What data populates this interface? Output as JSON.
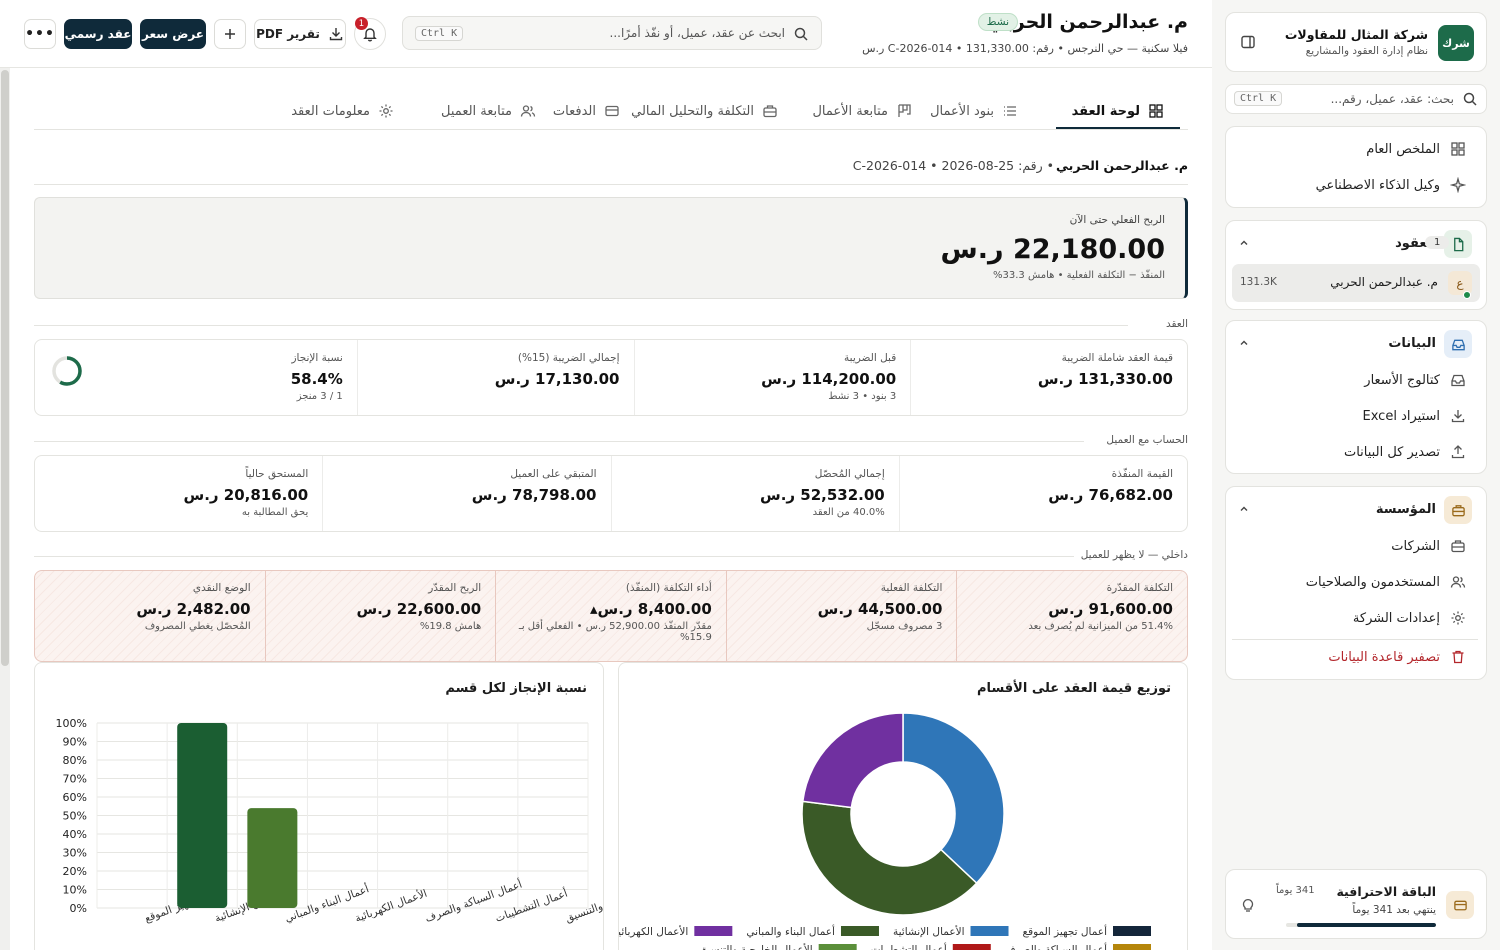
{
  "company": {
    "name": "شركة المثال للمقاولات",
    "subtitle": "نظام إدارة العقود والمشاريع",
    "logo_text": "شرك"
  },
  "sidebar_search": {
    "placeholder": "بحث: عقد، عميل، رقم...",
    "shortcut": "Ctrl K"
  },
  "nav_main": [
    {
      "label": "الملخص العام",
      "icon": "dashboard-icon"
    },
    {
      "label": "وكيل الذكاء الاصطناعي",
      "icon": "sparkle-icon"
    }
  ],
  "contracts": {
    "label": "العقود",
    "count": "1",
    "item_initial": "ع",
    "item_name": "م. عبدالرحمن الحربي",
    "item_value": "131.3K"
  },
  "data_group": {
    "label": "البيانات",
    "items": [
      {
        "label": "كتالوج الأسعار",
        "icon": "inbox-icon"
      },
      {
        "label": "استيراد Excel",
        "icon": "download-icon"
      },
      {
        "label": "تصدير كل البيانات",
        "icon": "upload-icon"
      }
    ]
  },
  "org_group": {
    "label": "المؤسسة",
    "items": [
      {
        "label": "الشركات",
        "icon": "briefcase-icon"
      },
      {
        "label": "المستخدمون والصلاحيات",
        "icon": "users-icon"
      },
      {
        "label": "إعدادات الشركة",
        "icon": "gear-icon"
      }
    ],
    "danger": "تصفير قاعدة البيانات"
  },
  "plan": {
    "name": "الباقة الاحترافية",
    "expires": "ينتهي بعد 341 يوماً",
    "days": "341 يوماً",
    "progress": 0.93
  },
  "header": {
    "title": "م. عبدالرحمن الحربي",
    "status": "نشط",
    "subtitle": "فيلا سكنية — حي النرجس • رقم: C-2026-014 • 131,330.00 ر.س",
    "search_placeholder": "ابحث عن عقد، عميل، أو نفّذ أمرًا...",
    "search_shortcut": "Ctrl K",
    "notif_count": "1",
    "btn_pdf": "تقرير PDF",
    "btn_quote": "عرض سعر",
    "btn_contract": "عقد رسمي"
  },
  "tabs": [
    {
      "label": "لوحة العقد",
      "icon": "dashboard-icon",
      "active": true
    },
    {
      "label": "بنود الأعمال",
      "icon": "list-icon"
    },
    {
      "label": "متابعة الأعمال",
      "icon": "kanban-icon"
    },
    {
      "label": "التكلفة والتحليل المالي",
      "icon": "briefcase-icon"
    },
    {
      "label": "الدفعات",
      "icon": "card-icon"
    },
    {
      "label": "متابعة العميل",
      "icon": "users-icon"
    },
    {
      "label": "معلومات العقد",
      "icon": "gear-icon"
    }
  ],
  "contract_line": {
    "name": "م. عبدالرحمن الحربي",
    "rest": " • رقم: C-2026-014 • 2026-08-25"
  },
  "profit": {
    "label": "الربح الفعلي حتى الآن",
    "value": "22,180.00 ر.س",
    "note": "المنفّذ − التكلفة الفعلية • هامش 33.3%"
  },
  "sections": {
    "contract": "العقد",
    "client": "الحساب مع العميل",
    "internal": "داخلي — لا يظهر للعميل"
  },
  "contract_stats": [
    {
      "label": "قيمة العقد شاملة الضريبة",
      "value": "131,330.00 ر.س",
      "sub": ""
    },
    {
      "label": "قبل الضريبة",
      "value": "114,200.00 ر.س",
      "sub": "3 بنود • 3 نشط"
    },
    {
      "label": "إجمالي الضريبة (15%)",
      "value": "17,130.00 ر.س",
      "sub": ""
    },
    {
      "label": "نسبة الإنجاز",
      "value": "58.4%",
      "sub": "1 / 3 منجز"
    }
  ],
  "completion_fraction": 0.584,
  "client_stats": [
    {
      "label": "القيمة المنفّذة",
      "value": "76,682.00 ر.س",
      "sub": ""
    },
    {
      "label": "إجمالي المُحصّل",
      "value": "52,532.00 ر.س",
      "sub": "40.0% من العقد"
    },
    {
      "label": "المتبقي على العميل",
      "value": "78,798.00 ر.س",
      "sub": ""
    },
    {
      "label": "المستحق حالياً",
      "value": "20,816.00 ر.س",
      "sub": "يحق المطالبة به"
    }
  ],
  "internal_stats": [
    {
      "label": "التكلفة المقدّرة",
      "value": "91,600.00 ر.س",
      "sub": "51.4% من الميزانية لم يُصرف بعد"
    },
    {
      "label": "التكلفة الفعلية",
      "value": "44,500.00 ر.س",
      "sub": "3 مصروف مسجّل"
    },
    {
      "label": "أداء التكلفة (المنفّذ)",
      "value": "8,400.00 ر.س▴",
      "sub": "مقدّر المنفّذ 52,900.00 ر.س • الفعلي أقل بـ 15.9%"
    },
    {
      "label": "الربح المقدّر",
      "value": "22,600.00 ر.س",
      "sub": "هامش 19.8%"
    },
    {
      "label": "الوضع النقدي",
      "value": "2,482.00 ر.س",
      "sub": "المُحصّل يغطي المصروف"
    }
  ],
  "chart_data": [
    {
      "type": "pie",
      "title": "توزيع قيمة العقد على الأقسام",
      "donut": true,
      "slices": [
        {
          "name": "أعمال تجهيز الموقع",
          "value": 0.37,
          "color": "#2f76b8"
        },
        {
          "name": "الأعمال الإنشائية",
          "value": 0.4,
          "color": "#3a5a27"
        },
        {
          "name": "أعمال البناء والمباني",
          "value": 0.23,
          "color": "#7030a0"
        }
      ],
      "legend": [
        {
          "name": "أعمال تجهيز الموقع",
          "color": "#14263a"
        },
        {
          "name": "الأعمال الإنشائية",
          "color": "#2f76b8"
        },
        {
          "name": "أعمال البناء والمباني",
          "color": "#3a5a27"
        },
        {
          "name": "الأعمال الكهربائية",
          "color": "#7030a0"
        },
        {
          "name": "أعمال السباكة والصرف",
          "color": "#b5860b"
        },
        {
          "name": "أعمال التشطيبات",
          "color": "#b01818"
        },
        {
          "name": "الأعمال الخارجية والتنسيق",
          "color": "#5b8f3a"
        }
      ]
    },
    {
      "type": "bar",
      "title": "نسبة الإنجاز لكل قسم",
      "categories": [
        "أعمال تجهيز الموقع",
        "الأعمال الإنشائية",
        "أعمال البناء والمباني",
        "الأعمال الكهربائية",
        "أعمال السباكة والصرف",
        "أعمال التشطيبات",
        "الأعمال الخارجية والتنسيق"
      ],
      "values": [
        0,
        100,
        54,
        0,
        0,
        0,
        0
      ],
      "colors": [
        "#1b5e32",
        "#1b5e32",
        "#4a7a2e",
        "#1b5e32",
        "#1b5e32",
        "#1b5e32",
        "#1b5e32"
      ],
      "ylim": [
        0,
        100
      ],
      "yticks": [
        "0%",
        "10%",
        "20%",
        "30%",
        "40%",
        "50%",
        "60%",
        "70%",
        "80%",
        "90%",
        "100%"
      ],
      "grid": true
    }
  ]
}
